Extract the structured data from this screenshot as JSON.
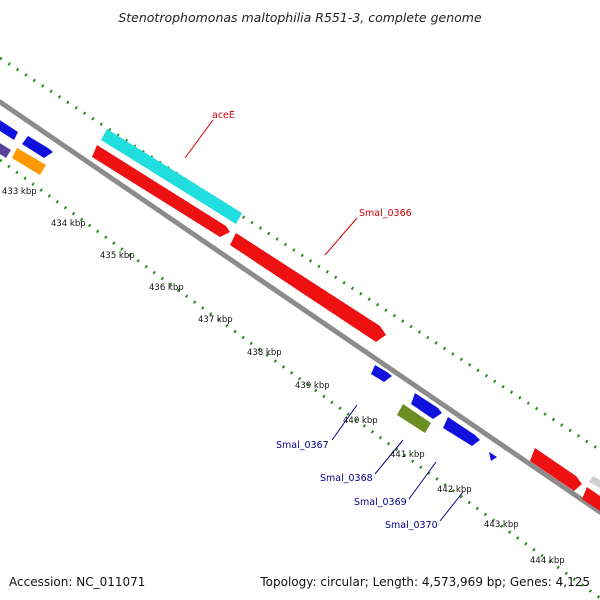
{
  "title": "Stenotrophomonas maltophilia R551-3, complete genome",
  "footer": {
    "accession": "Accession: NC_011071",
    "summary": "Topology: circular; Length: 4,573,969 bp; Genes: 4,125"
  },
  "scale_labels": [
    "433 kbp",
    "434 kbp",
    "435 kbp",
    "436 kbp",
    "437 kbp",
    "438 kbp",
    "439 kbp",
    "440 kbp",
    "441 kbp",
    "442 kbp",
    "443 kbp",
    "444 kbp"
  ],
  "gene_labels": [
    {
      "text": "aceE",
      "color": "#cc0000"
    },
    {
      "text": "Smal_0366",
      "color": "#cc0000"
    },
    {
      "text": "Smal_0367",
      "color": "#00008b"
    },
    {
      "text": "Smal_0368",
      "color": "#00008b"
    },
    {
      "text": "Smal_0369",
      "color": "#00008b"
    },
    {
      "text": "Smal_0370",
      "color": "#00008b"
    }
  ],
  "colors": {
    "backbone": "#8c8c8c",
    "dotted_track": "#2e8b22",
    "red_gene": "#ee1111",
    "blue_gene": "#1111dd",
    "cyan_gene": "#22dddd",
    "orange_gene": "#ff9900",
    "purple_gene": "#554499",
    "olive_gene": "#6b8e23"
  }
}
